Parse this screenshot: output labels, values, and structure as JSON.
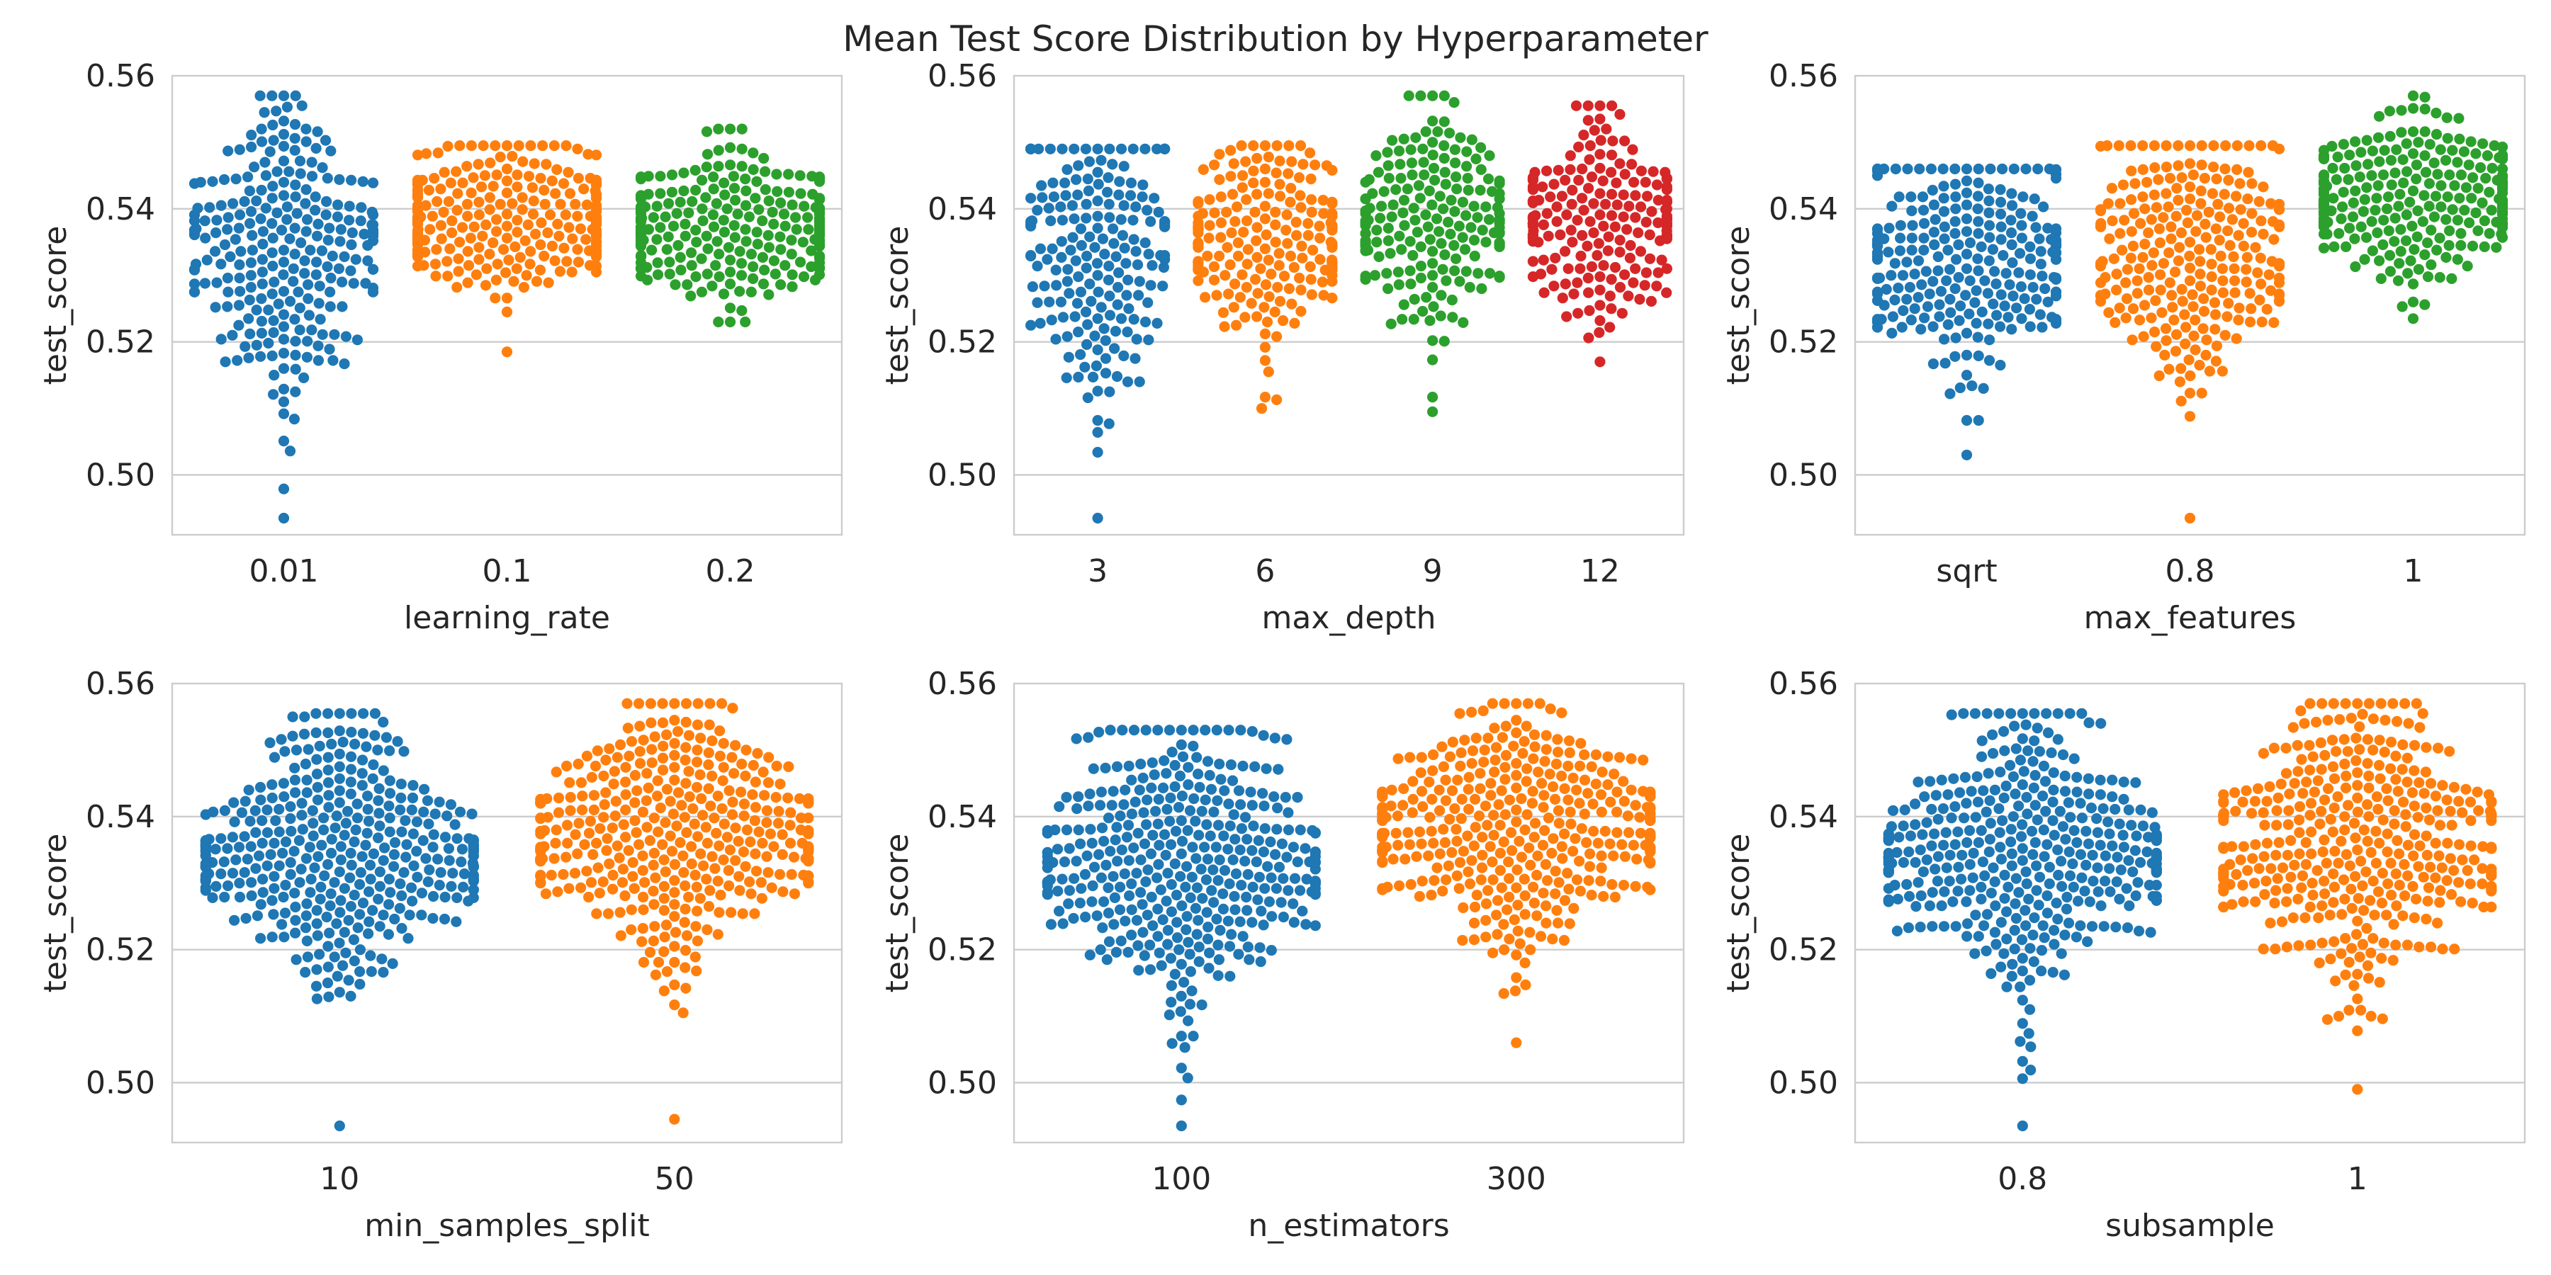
{
  "figure": {
    "title": "Mean Test Score Distribution by Hyperparameter"
  },
  "palette": [
    "#1f77b4",
    "#ff7f0e",
    "#2ca02c",
    "#d62728"
  ],
  "chart_data": [
    {
      "type": "scatter",
      "subtype": "swarm",
      "xlabel": "learning_rate",
      "ylabel": "test_score",
      "ylim": [
        0.491,
        0.56
      ],
      "yticks": [
        "0.50",
        "0.52",
        "0.54",
        "0.56"
      ],
      "grid": "y",
      "categories": [
        "0.01",
        "0.1",
        "0.2"
      ],
      "series": [
        {
          "category": "0.01",
          "color": "#1f77b4",
          "n": 260,
          "mean": 0.532,
          "sd": 0.0115,
          "min": 0.4935,
          "max": 0.557
        },
        {
          "category": "0.1",
          "color": "#ff7f0e",
          "n": 260,
          "mean": 0.539,
          "sd": 0.0055,
          "min": 0.5185,
          "max": 0.5495
        },
        {
          "category": "0.2",
          "color": "#2ca02c",
          "n": 260,
          "mean": 0.537,
          "sd": 0.006,
          "min": 0.523,
          "max": 0.552
        }
      ]
    },
    {
      "type": "scatter",
      "subtype": "swarm",
      "xlabel": "max_depth",
      "ylabel": "test_score",
      "ylim": [
        0.491,
        0.56
      ],
      "yticks": [
        "0.50",
        "0.52",
        "0.54",
        "0.56"
      ],
      "grid": "y",
      "categories": [
        "3",
        "6",
        "9",
        "12"
      ],
      "series": [
        {
          "category": "3",
          "color": "#1f77b4",
          "n": 195,
          "mean": 0.533,
          "sd": 0.012,
          "min": 0.4935,
          "max": 0.549
        },
        {
          "category": "6",
          "color": "#ff7f0e",
          "n": 195,
          "mean": 0.535,
          "sd": 0.0085,
          "min": 0.51,
          "max": 0.5495
        },
        {
          "category": "9",
          "color": "#2ca02c",
          "n": 195,
          "mean": 0.538,
          "sd": 0.008,
          "min": 0.5095,
          "max": 0.557
        },
        {
          "category": "12",
          "color": "#d62728",
          "n": 195,
          "mean": 0.538,
          "sd": 0.0075,
          "min": 0.517,
          "max": 0.5555
        }
      ]
    },
    {
      "type": "scatter",
      "subtype": "swarm",
      "xlabel": "max_features",
      "ylabel": "test_score",
      "ylim": [
        0.491,
        0.56
      ],
      "yticks": [
        "0.50",
        "0.52",
        "0.54",
        "0.56"
      ],
      "grid": "y",
      "categories": [
        "sqrt",
        "0.8",
        "1"
      ],
      "series": [
        {
          "category": "sqrt",
          "color": "#1f77b4",
          "n": 260,
          "mean": 0.532,
          "sd": 0.0085,
          "min": 0.503,
          "max": 0.546
        },
        {
          "category": "0.8",
          "color": "#ff7f0e",
          "n": 260,
          "mean": 0.534,
          "sd": 0.0105,
          "min": 0.4935,
          "max": 0.5495
        },
        {
          "category": "1",
          "color": "#2ca02c",
          "n": 260,
          "mean": 0.541,
          "sd": 0.0065,
          "min": 0.5235,
          "max": 0.557
        }
      ]
    },
    {
      "type": "scatter",
      "subtype": "swarm",
      "xlabel": "min_samples_split",
      "ylabel": "test_score",
      "ylim": [
        0.491,
        0.56
      ],
      "yticks": [
        "0.50",
        "0.52",
        "0.54",
        "0.56"
      ],
      "grid": "y",
      "categories": [
        "10",
        "50"
      ],
      "series": [
        {
          "category": "10",
          "color": "#1f77b4",
          "n": 390,
          "mean": 0.535,
          "sd": 0.0095,
          "min": 0.4935,
          "max": 0.5555
        },
        {
          "category": "50",
          "color": "#ff7f0e",
          "n": 390,
          "mean": 0.537,
          "sd": 0.0095,
          "min": 0.4945,
          "max": 0.557
        }
      ]
    },
    {
      "type": "scatter",
      "subtype": "swarm",
      "xlabel": "n_estimators",
      "ylabel": "test_score",
      "ylim": [
        0.491,
        0.56
      ],
      "yticks": [
        "0.50",
        "0.52",
        "0.54",
        "0.56"
      ],
      "grid": "y",
      "categories": [
        "100",
        "300"
      ],
      "series": [
        {
          "category": "100",
          "color": "#1f77b4",
          "n": 390,
          "mean": 0.532,
          "sd": 0.011,
          "min": 0.4935,
          "max": 0.553
        },
        {
          "category": "300",
          "color": "#ff7f0e",
          "n": 390,
          "mean": 0.538,
          "sd": 0.0085,
          "min": 0.506,
          "max": 0.557
        }
      ]
    },
    {
      "type": "scatter",
      "subtype": "swarm",
      "xlabel": "subsample",
      "ylabel": "test_score",
      "ylim": [
        0.491,
        0.56
      ],
      "yticks": [
        "0.50",
        "0.52",
        "0.54",
        "0.56"
      ],
      "grid": "y",
      "categories": [
        "0.8",
        "1"
      ],
      "series": [
        {
          "category": "0.8",
          "color": "#1f77b4",
          "n": 390,
          "mean": 0.534,
          "sd": 0.0105,
          "min": 0.4935,
          "max": 0.5555
        },
        {
          "category": "1",
          "color": "#ff7f0e",
          "n": 390,
          "mean": 0.536,
          "sd": 0.01,
          "min": 0.499,
          "max": 0.557
        }
      ]
    }
  ]
}
